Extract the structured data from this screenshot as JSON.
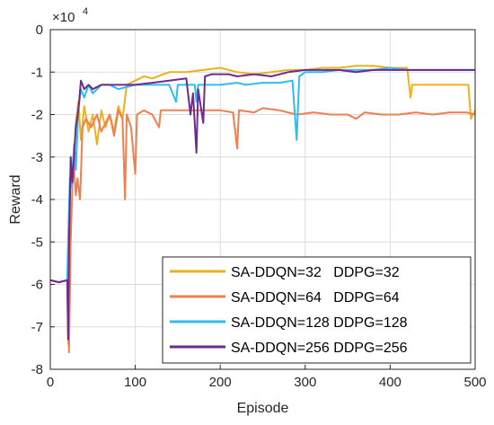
{
  "chart_data": {
    "type": "line",
    "title": "",
    "xlabel": "Episode",
    "ylabel": "Reward",
    "exponent_label": "×10",
    "exponent_power": "4",
    "xlim": [
      0,
      500
    ],
    "ylim": [
      -8,
      0
    ],
    "x_ticks": [
      "0",
      "100",
      "200",
      "300",
      "400",
      "500"
    ],
    "y_ticks": [
      "0",
      "-1",
      "-2",
      "-3",
      "-4",
      "-5",
      "-6",
      "-7",
      "-8"
    ],
    "grid": true,
    "legend_position": "bottom-right",
    "y_scale_note": "values in units of 10^4",
    "series": [
      {
        "name": "SA-DDQN=32   DDPG=32",
        "color": "#EDB120",
        "points": [
          [
            0,
            -5.9
          ],
          [
            10,
            -5.95
          ],
          [
            20,
            -5.9
          ],
          [
            21,
            -7.4
          ],
          [
            22,
            -5.0
          ],
          [
            24,
            -3.1
          ],
          [
            27,
            -3.3
          ],
          [
            30,
            -2.2
          ],
          [
            33,
            -1.7
          ],
          [
            36,
            -2.6
          ],
          [
            40,
            -1.8
          ],
          [
            45,
            -2.4
          ],
          [
            50,
            -2.0
          ],
          [
            55,
            -2.7
          ],
          [
            60,
            -1.9
          ],
          [
            65,
            -2.3
          ],
          [
            70,
            -2.0
          ],
          [
            75,
            -2.4
          ],
          [
            80,
            -1.8
          ],
          [
            85,
            -2.1
          ],
          [
            90,
            -1.3
          ],
          [
            100,
            -1.2
          ],
          [
            110,
            -1.1
          ],
          [
            120,
            -1.15
          ],
          [
            140,
            -1.0
          ],
          [
            160,
            -1.0
          ],
          [
            180,
            -0.95
          ],
          [
            200,
            -0.9
          ],
          [
            220,
            -1.0
          ],
          [
            240,
            -1.05
          ],
          [
            260,
            -1.0
          ],
          [
            280,
            -0.95
          ],
          [
            300,
            -0.95
          ],
          [
            320,
            -0.9
          ],
          [
            340,
            -0.9
          ],
          [
            360,
            -0.85
          ],
          [
            380,
            -0.85
          ],
          [
            400,
            -0.9
          ],
          [
            420,
            -0.9
          ],
          [
            424,
            -1.6
          ],
          [
            426,
            -1.3
          ],
          [
            440,
            -1.3
          ],
          [
            460,
            -1.3
          ],
          [
            480,
            -1.3
          ],
          [
            492,
            -1.3
          ],
          [
            495,
            -2.1
          ],
          [
            500,
            -1.9
          ]
        ]
      },
      {
        "name": "SA-DDQN=64   DDPG=64",
        "color": "#EE7F4F",
        "points": [
          [
            0,
            -5.9
          ],
          [
            10,
            -5.95
          ],
          [
            20,
            -5.9
          ],
          [
            22,
            -7.6
          ],
          [
            24,
            -5.0
          ],
          [
            27,
            -3.0
          ],
          [
            30,
            -3.9
          ],
          [
            32,
            -3.5
          ],
          [
            35,
            -4.0
          ],
          [
            38,
            -2.3
          ],
          [
            42,
            -2.1
          ],
          [
            48,
            -2.3
          ],
          [
            55,
            -2.0
          ],
          [
            60,
            -2.4
          ],
          [
            70,
            -2.0
          ],
          [
            75,
            -2.5
          ],
          [
            80,
            -1.9
          ],
          [
            85,
            -2.1
          ],
          [
            88,
            -4.0
          ],
          [
            90,
            -2.0
          ],
          [
            95,
            -2.3
          ],
          [
            100,
            -3.4
          ],
          [
            102,
            -2.0
          ],
          [
            110,
            -1.9
          ],
          [
            120,
            -2.0
          ],
          [
            128,
            -2.3
          ],
          [
            130,
            -1.9
          ],
          [
            150,
            -1.9
          ],
          [
            170,
            -1.9
          ],
          [
            190,
            -1.9
          ],
          [
            200,
            -1.9
          ],
          [
            215,
            -1.95
          ],
          [
            220,
            -2.8
          ],
          [
            222,
            -1.9
          ],
          [
            240,
            -1.95
          ],
          [
            250,
            -1.85
          ],
          [
            270,
            -1.9
          ],
          [
            290,
            -2.0
          ],
          [
            310,
            -1.95
          ],
          [
            330,
            -2.0
          ],
          [
            350,
            -2.0
          ],
          [
            360,
            -2.1
          ],
          [
            370,
            -1.95
          ],
          [
            390,
            -2.0
          ],
          [
            410,
            -2.0
          ],
          [
            430,
            -1.95
          ],
          [
            450,
            -2.0
          ],
          [
            470,
            -1.95
          ],
          [
            490,
            -1.95
          ],
          [
            500,
            -2.0
          ]
        ]
      },
      {
        "name": "SA-DDQN=128 DDPG=128",
        "color": "#2DBDF0",
        "points": [
          [
            0,
            -5.9
          ],
          [
            10,
            -5.95
          ],
          [
            20,
            -5.9
          ],
          [
            21,
            -4.9
          ],
          [
            23,
            -3.5
          ],
          [
            25,
            -3.7
          ],
          [
            28,
            -2.7
          ],
          [
            30,
            -3.3
          ],
          [
            33,
            -1.9
          ],
          [
            36,
            -1.4
          ],
          [
            40,
            -1.6
          ],
          [
            45,
            -1.3
          ],
          [
            50,
            -1.5
          ],
          [
            60,
            -1.3
          ],
          [
            70,
            -1.3
          ],
          [
            80,
            -1.4
          ],
          [
            100,
            -1.3
          ],
          [
            120,
            -1.3
          ],
          [
            140,
            -1.3
          ],
          [
            148,
            -1.7
          ],
          [
            150,
            -1.3
          ],
          [
            170,
            -1.3
          ],
          [
            172,
            -1.7
          ],
          [
            174,
            -1.3
          ],
          [
            200,
            -1.3
          ],
          [
            220,
            -1.25
          ],
          [
            230,
            -1.3
          ],
          [
            250,
            -1.25
          ],
          [
            270,
            -1.25
          ],
          [
            285,
            -1.2
          ],
          [
            290,
            -2.6
          ],
          [
            293,
            -1.1
          ],
          [
            300,
            -1.0
          ],
          [
            320,
            -1.0
          ],
          [
            340,
            -0.95
          ],
          [
            360,
            -0.95
          ],
          [
            380,
            -0.95
          ],
          [
            400,
            -0.9
          ],
          [
            420,
            -0.95
          ],
          [
            440,
            -0.95
          ],
          [
            460,
            -0.95
          ],
          [
            480,
            -0.95
          ],
          [
            500,
            -0.95
          ]
        ]
      },
      {
        "name": "SA-DDQN=256 DDPG=256",
        "color": "#6E2A8C",
        "points": [
          [
            0,
            -5.9
          ],
          [
            10,
            -5.95
          ],
          [
            20,
            -5.9
          ],
          [
            21,
            -7.3
          ],
          [
            22,
            -5.2
          ],
          [
            24,
            -3.0
          ],
          [
            26,
            -3.6
          ],
          [
            30,
            -2.3
          ],
          [
            33,
            -1.9
          ],
          [
            36,
            -1.2
          ],
          [
            40,
            -1.4
          ],
          [
            45,
            -1.3
          ],
          [
            50,
            -1.4
          ],
          [
            60,
            -1.3
          ],
          [
            80,
            -1.3
          ],
          [
            100,
            -1.3
          ],
          [
            120,
            -1.25
          ],
          [
            140,
            -1.2
          ],
          [
            160,
            -1.15
          ],
          [
            165,
            -2.0
          ],
          [
            168,
            -1.5
          ],
          [
            172,
            -2.9
          ],
          [
            174,
            -1.4
          ],
          [
            180,
            -2.2
          ],
          [
            182,
            -1.1
          ],
          [
            190,
            -1.05
          ],
          [
            210,
            -1.05
          ],
          [
            220,
            -1.1
          ],
          [
            240,
            -1.05
          ],
          [
            260,
            -1.1
          ],
          [
            280,
            -1.0
          ],
          [
            300,
            -0.95
          ],
          [
            320,
            -0.95
          ],
          [
            340,
            -0.95
          ],
          [
            360,
            -1.0
          ],
          [
            380,
            -0.95
          ],
          [
            400,
            -0.95
          ],
          [
            420,
            -0.95
          ],
          [
            440,
            -0.95
          ],
          [
            460,
            -0.95
          ],
          [
            480,
            -0.95
          ],
          [
            500,
            -0.95
          ]
        ]
      }
    ]
  }
}
